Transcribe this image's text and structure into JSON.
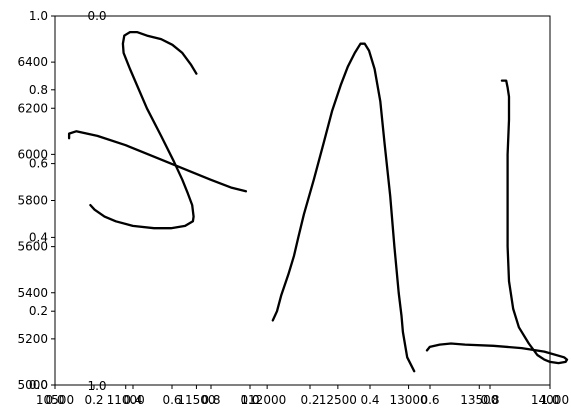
{
  "chart_data": {
    "type": "line",
    "title": "",
    "xlabel": "",
    "ylabel": "",
    "grid": false,
    "legend": false,
    "line_color": "#000000",
    "xlim": [
      10500,
      14000
    ],
    "ylim": [
      5000,
      6600
    ],
    "x_ticks": [
      {
        "value": 10500,
        "label": "10500"
      },
      {
        "value": 11000,
        "label": "11000"
      },
      {
        "value": 11500,
        "label": "11500"
      },
      {
        "value": 12000,
        "label": "12000"
      },
      {
        "value": 12500,
        "label": "12500"
      },
      {
        "value": 13000,
        "label": "13000"
      },
      {
        "value": 13500,
        "label": "13500"
      },
      {
        "value": 14000,
        "label": "14000"
      }
    ],
    "y_ticks": [
      {
        "value": 5000,
        "label": "5000"
      },
      {
        "value": 5200,
        "label": "5200"
      },
      {
        "value": 5400,
        "label": "5400"
      },
      {
        "value": 5600,
        "label": "5600"
      },
      {
        "value": 5800,
        "label": "5800"
      },
      {
        "value": 6000,
        "label": "6000"
      },
      {
        "value": 6200,
        "label": "6200"
      },
      {
        "value": 6400,
        "label": "6400"
      }
    ],
    "overlay_axes": {
      "y_left": [
        "0.0",
        "0.2",
        "0.4",
        "0.6",
        "0.8",
        "1.0"
      ],
      "x_bottom_a": [
        "0.0",
        "0.2",
        "0.4",
        "0.6",
        "0.8",
        "1.0"
      ],
      "x_bottom_b": [
        "0.0",
        "0.2",
        "0.4",
        "0.6",
        "0.8",
        "1.0"
      ],
      "x_top_corner": "0.0",
      "x_bottom_corner": "1.0"
    },
    "series": [
      {
        "points": [
          [
            11500,
            6350
          ],
          [
            11460,
            6390
          ],
          [
            11400,
            6440
          ],
          [
            11330,
            6475
          ],
          [
            11250,
            6500
          ],
          [
            11150,
            6515
          ],
          [
            11080,
            6530
          ],
          [
            11030,
            6530
          ],
          [
            10990,
            6515
          ],
          [
            10980,
            6480
          ],
          [
            10985,
            6440
          ],
          [
            11030,
            6370
          ],
          [
            11150,
            6200
          ],
          [
            11250,
            6080
          ],
          [
            11340,
            5970
          ],
          [
            11400,
            5890
          ],
          [
            11440,
            5830
          ],
          [
            11470,
            5780
          ],
          [
            11480,
            5730
          ],
          [
            11475,
            5710
          ],
          [
            11420,
            5690
          ],
          [
            11320,
            5680
          ],
          [
            11200,
            5680
          ],
          [
            11050,
            5690
          ],
          [
            10930,
            5710
          ],
          [
            10850,
            5730
          ],
          [
            10780,
            5760
          ],
          [
            10750,
            5780
          ]
        ]
      },
      {
        "points": [
          [
            10600,
            6070
          ],
          [
            10600,
            6090
          ],
          [
            10650,
            6100
          ],
          [
            10800,
            6080
          ],
          [
            11000,
            6040
          ],
          [
            11200,
            5990
          ],
          [
            11400,
            5940
          ],
          [
            11600,
            5890
          ],
          [
            11750,
            5855
          ],
          [
            11850,
            5840
          ]
        ]
      },
      {
        "points": [
          [
            12040,
            5280
          ],
          [
            12070,
            5320
          ],
          [
            12100,
            5390
          ],
          [
            12150,
            5480
          ],
          [
            12190,
            5560
          ],
          [
            12220,
            5640
          ],
          [
            12260,
            5740
          ],
          [
            12330,
            5890
          ],
          [
            12400,
            6050
          ],
          [
            12460,
            6190
          ],
          [
            12520,
            6300
          ],
          [
            12570,
            6380
          ],
          [
            12620,
            6440
          ],
          [
            12660,
            6480
          ],
          [
            12690,
            6480
          ],
          [
            12720,
            6450
          ],
          [
            12760,
            6370
          ],
          [
            12800,
            6230
          ],
          [
            12830,
            6050
          ],
          [
            12870,
            5820
          ],
          [
            12900,
            5600
          ],
          [
            12930,
            5400
          ],
          [
            12950,
            5300
          ],
          [
            12960,
            5230
          ],
          [
            12990,
            5120
          ],
          [
            13040,
            5060
          ]
        ]
      },
      {
        "points": [
          [
            13660,
            6320
          ],
          [
            13690,
            6320
          ],
          [
            13700,
            6290
          ],
          [
            13710,
            6250
          ],
          [
            13710,
            6150
          ],
          [
            13700,
            6000
          ],
          [
            13700,
            5800
          ],
          [
            13700,
            5600
          ],
          [
            13710,
            5450
          ],
          [
            13740,
            5330
          ],
          [
            13780,
            5250
          ],
          [
            13850,
            5180
          ],
          [
            13910,
            5130
          ],
          [
            13960,
            5110
          ],
          [
            14000,
            5100
          ],
          [
            14060,
            5095
          ],
          [
            14110,
            5100
          ],
          [
            14120,
            5110
          ],
          [
            14100,
            5120
          ],
          [
            13960,
            5145
          ],
          [
            13800,
            5160
          ],
          [
            13600,
            5170
          ],
          [
            13400,
            5175
          ],
          [
            13300,
            5180
          ],
          [
            13220,
            5175
          ],
          [
            13150,
            5165
          ],
          [
            13130,
            5150
          ]
        ]
      }
    ]
  }
}
